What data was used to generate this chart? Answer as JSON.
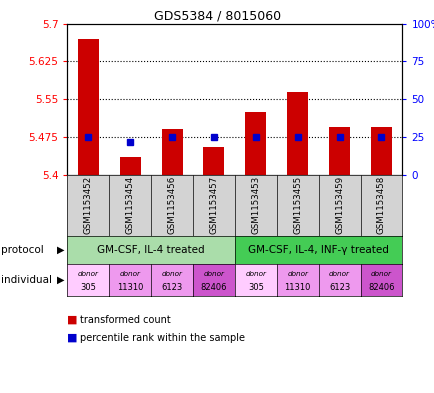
{
  "title": "GDS5384 / 8015060",
  "samples": [
    "GSM1153452",
    "GSM1153454",
    "GSM1153456",
    "GSM1153457",
    "GSM1153453",
    "GSM1153455",
    "GSM1153459",
    "GSM1153458"
  ],
  "transformed_counts": [
    5.67,
    5.435,
    5.49,
    5.455,
    5.525,
    5.565,
    5.495,
    5.495
  ],
  "percentile_ranks": [
    25,
    22,
    25,
    25,
    25,
    25,
    25,
    25
  ],
  "ylim_left": [
    5.4,
    5.7
  ],
  "ylim_right": [
    0,
    100
  ],
  "yticks_left": [
    5.4,
    5.475,
    5.55,
    5.625,
    5.7
  ],
  "yticks_right": [
    0,
    25,
    50,
    75,
    100
  ],
  "ytick_labels_left": [
    "5.4",
    "5.475",
    "5.55",
    "5.625",
    "5.7"
  ],
  "ytick_labels_right": [
    "0",
    "25",
    "50",
    "75",
    "100%"
  ],
  "hlines": [
    5.475,
    5.55,
    5.625
  ],
  "bar_color": "#cc0000",
  "dot_color": "#0000cc",
  "bar_width": 0.5,
  "protocol_groups": [
    {
      "label": "GM-CSF, IL-4 treated",
      "cols": [
        0,
        1,
        2,
        3
      ],
      "color": "#aaddaa"
    },
    {
      "label": "GM-CSF, IL-4, INF-γ treated",
      "cols": [
        4,
        5,
        6,
        7
      ],
      "color": "#44cc55"
    }
  ],
  "donors": [
    "305",
    "11310",
    "6123",
    "82406",
    "305",
    "11310",
    "6123",
    "82406"
  ],
  "donor_colors": [
    "#ffccff",
    "#ee99ee",
    "#ee99ee",
    "#cc55cc",
    "#ffccff",
    "#ee99ee",
    "#ee99ee",
    "#cc55cc"
  ],
  "sample_box_color": "#d3d3d3",
  "legend_bar_color": "#cc0000",
  "legend_dot_color": "#0000cc",
  "legend_text1": "transformed count",
  "legend_text2": "percentile rank within the sample",
  "protocol_label": "protocol",
  "individual_label": "individual",
  "figsize": [
    4.35,
    3.93
  ],
  "dpi": 100
}
